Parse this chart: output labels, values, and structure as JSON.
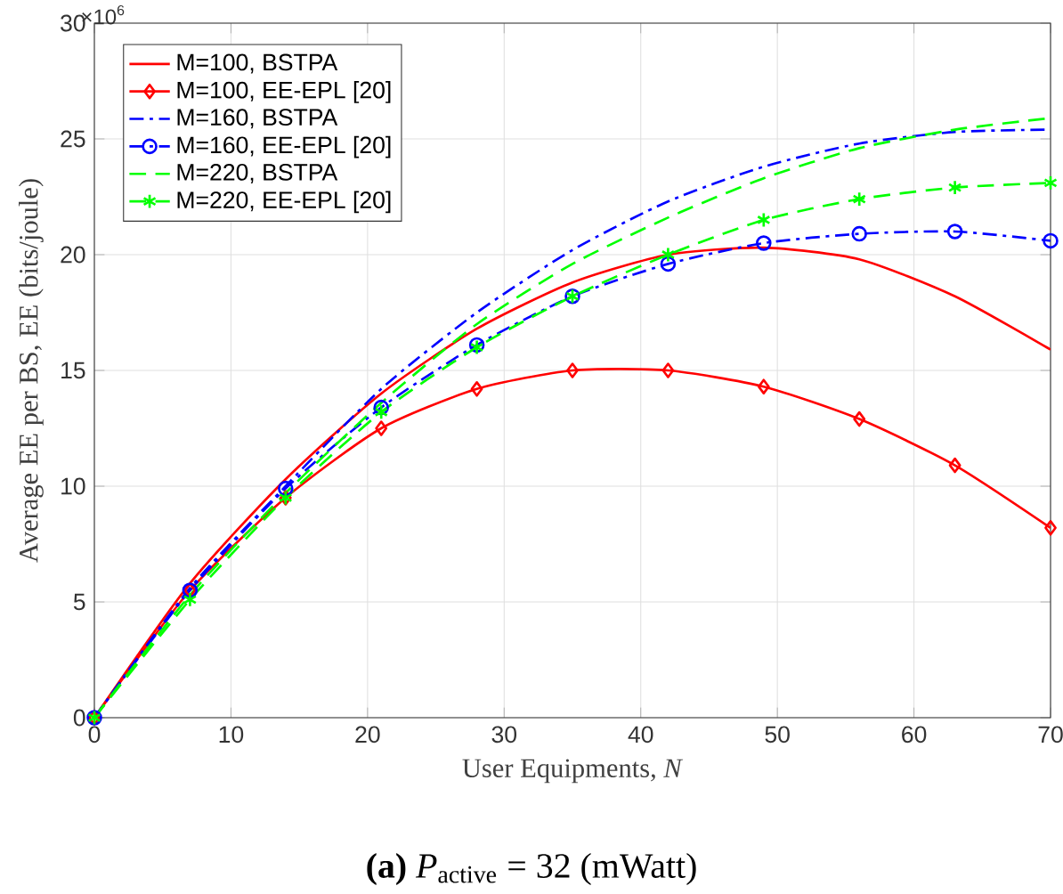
{
  "chart_data": {
    "type": "line",
    "xlabel": "User Equipments, *N*",
    "ylabel": "Average EE per BS, EE (bits/joule)",
    "annotations": [
      "×10$^{6}$",
      "**(a)** *P*$_{active}$ = 32 (mWatt)"
    ],
    "x": [
      0,
      7,
      14,
      21,
      28,
      35,
      42,
      49,
      56,
      63,
      70
    ],
    "xlim": [
      0,
      70
    ],
    "xticks": [
      0,
      10,
      20,
      30,
      40,
      50,
      60,
      70
    ],
    "ylim": [
      0,
      30
    ],
    "yticks": [
      0,
      5,
      10,
      15,
      20,
      25,
      30
    ],
    "grid": true,
    "legend": "top left",
    "series": [
      {
        "name": "M=100, BSTPA",
        "color": "#ff0000",
        "line_style": "solid",
        "marker": "none",
        "values": [
          0,
          5.8,
          10.3,
          14.0,
          16.8,
          18.8,
          20.0,
          20.3,
          19.8,
          18.2,
          15.9
        ]
      },
      {
        "name": "M=100, EE-EPL [20]",
        "color": "#ff0000",
        "line_style": "solid",
        "marker": "diamond",
        "values": [
          0,
          5.5,
          9.5,
          12.5,
          14.2,
          15.0,
          15.0,
          14.3,
          12.9,
          10.9,
          8.2
        ]
      },
      {
        "name": "M=160, BSTPA",
        "color": "#0000ff",
        "line_style": "dashdot",
        "marker": "none",
        "values": [
          0,
          5.6,
          10.0,
          14.2,
          17.5,
          20.2,
          22.3,
          23.8,
          24.8,
          25.3,
          25.4
        ]
      },
      {
        "name": "M=160, EE-EPL [20]",
        "color": "#0000ff",
        "line_style": "dashdot",
        "marker": "circle",
        "values": [
          0,
          5.5,
          9.9,
          13.4,
          16.1,
          18.2,
          19.6,
          20.5,
          20.9,
          21.0,
          20.6
        ]
      },
      {
        "name": "M=220, BSTPA",
        "color": "#00ff00",
        "line_style": "dashed",
        "marker": "none",
        "values": [
          0,
          5.3,
          9.7,
          13.6,
          17.0,
          19.6,
          21.6,
          23.3,
          24.6,
          25.4,
          25.9
        ]
      },
      {
        "name": "M=220, EE-EPL [20]",
        "color": "#00ff00",
        "line_style": "dashed",
        "marker": "cross",
        "values": [
          0,
          5.1,
          9.5,
          13.2,
          16.0,
          18.2,
          20.0,
          21.5,
          22.4,
          22.9,
          23.1
        ]
      }
    ]
  }
}
